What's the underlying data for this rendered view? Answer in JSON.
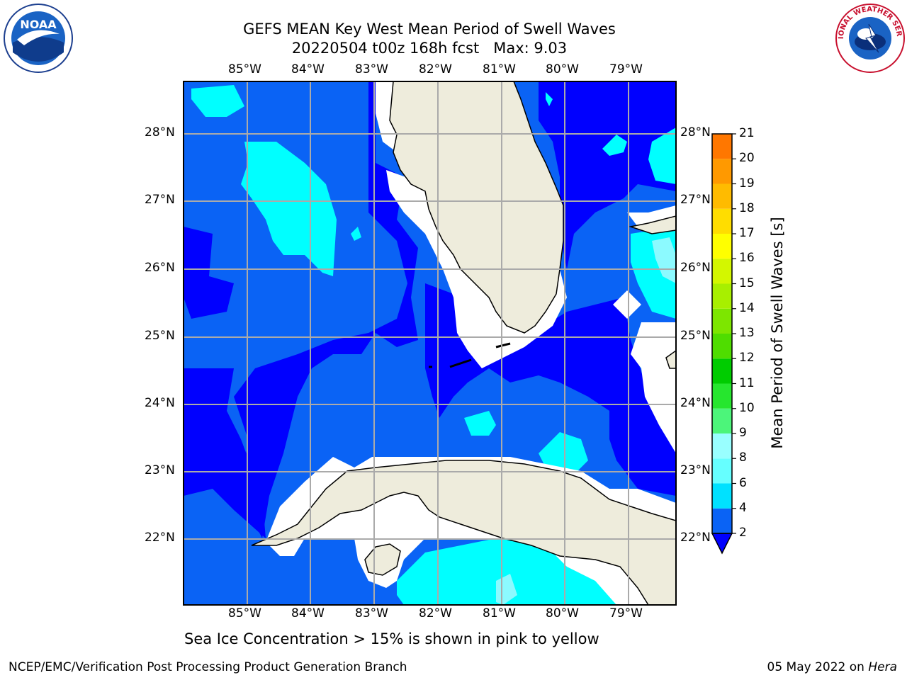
{
  "title": {
    "line1": "GEFS MEAN Key West Mean Period of Swell Waves",
    "line2": "20220504 t00z 168h fcst   Max: 9.03"
  },
  "axes": {
    "lon_labels": [
      "85°W",
      "84°W",
      "83°W",
      "82°W",
      "81°W",
      "80°W",
      "79°W"
    ],
    "lat_labels": [
      "28°N",
      "27°N",
      "26°N",
      "25°N",
      "24°N",
      "23°N",
      "22°N"
    ],
    "lon_range": [
      -86.0,
      -78.3
    ],
    "lat_range": [
      21.0,
      28.8
    ],
    "grid": true
  },
  "colorbar": {
    "label": "Mean Period of Swell Waves [s]",
    "ticks": [
      "2",
      "4",
      "6",
      "8",
      "9",
      "10",
      "11",
      "12",
      "13",
      "14",
      "15",
      "16",
      "17",
      "18",
      "19",
      "20",
      "21"
    ],
    "colors": [
      "#0a63f5",
      "#00e1ff",
      "#33f7ff",
      "#66ffff",
      "#99ffff",
      "#4cf57a",
      "#26e62e",
      "#00cc00",
      "#4fdd00",
      "#7de600",
      "#a8ef00",
      "#d3f700",
      "#ffff00",
      "#ffdd00",
      "#ffbb00",
      "#ff9900",
      "#ff7700",
      "#ff5500",
      "#ff3300",
      "#ff1100",
      "#ff0000"
    ],
    "under_color": "#0000ff"
  },
  "map": {
    "ocean_low": "#0000ff",
    "ocean_mid": "#0a63f5",
    "ocean_high": "#00ffff",
    "ocean_peak": "#8cfaff",
    "land": "#eeecdc",
    "nodata": "#ffffff"
  },
  "subnote": "Sea Ice Concentration > 15% is shown in pink to yellow",
  "footer": {
    "left": "NCEP/EMC/Verification Post Processing Product Generation Branch",
    "date": "05 May 2022 on",
    "machine": "Hera"
  },
  "logos": {
    "left": "noaa-logo",
    "right": "national-weather-service-logo",
    "left_text": "NOAA",
    "right_text": "NATIONAL WEATHER SERVICE"
  }
}
